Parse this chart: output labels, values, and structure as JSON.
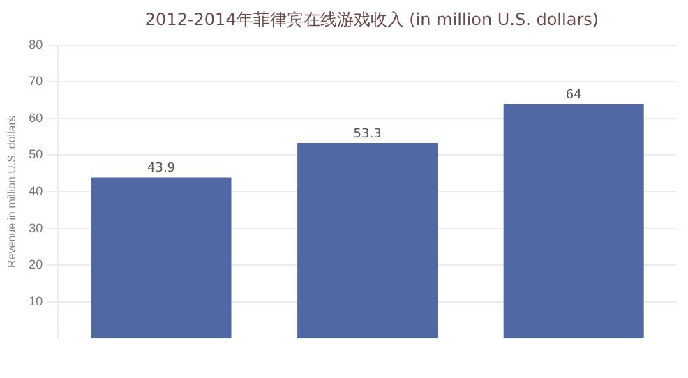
{
  "chart_data": {
    "type": "bar",
    "title": "2012-2014年菲律宾在线游戏收入 (in million U.S. dollars)",
    "ylabel": "Revenue in million U.S. dollars",
    "categories": [
      null,
      null,
      null
    ],
    "values": [
      43.9,
      53.3,
      64
    ],
    "color": "#5068a3",
    "ylim": [
      0,
      80
    ],
    "yticks": [
      10,
      20,
      30,
      40,
      50,
      60,
      70,
      80
    ],
    "grid": "y",
    "data_labels": true
  }
}
